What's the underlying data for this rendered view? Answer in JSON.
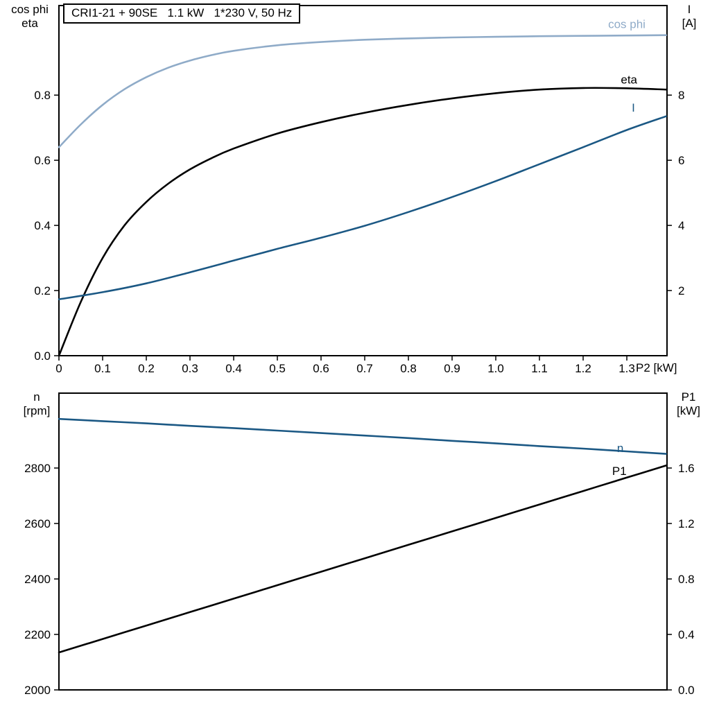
{
  "header": {
    "title": "CRI1-21 + 90SE   1.1 kW   1*230 V, 50 Hz"
  },
  "colors": {
    "black": "#000000",
    "dark_blue": "#1b5884",
    "light_blue": "#8fabc8"
  },
  "chart_data": [
    {
      "type": "line",
      "plot": "top",
      "x_axis": {
        "label": "P2 [kW]",
        "range": [
          0,
          1.392
        ],
        "ticks": [
          0,
          0.1,
          0.2,
          0.3,
          0.4,
          0.5,
          0.6,
          0.7,
          0.8,
          0.9,
          1.0,
          1.1,
          1.2,
          1.3
        ],
        "tick_labels": [
          "0",
          "0.1",
          "0.2",
          "0.3",
          "0.4",
          "0.5",
          "0.6",
          "0.7",
          "0.8",
          "0.9",
          "1.0",
          "1.1",
          "1.2",
          "1.3"
        ],
        "show_labels": true
      },
      "left_axis": {
        "title_lines": [
          "cos phi",
          "eta"
        ],
        "range": [
          0,
          1.075
        ],
        "ticks": [
          0,
          0.2,
          0.4,
          0.6,
          0.8
        ],
        "tick_labels": [
          "0.0",
          "0.2",
          "0.4",
          "0.6",
          "0.8"
        ]
      },
      "right_axis": {
        "title_lines": [
          "I",
          "[A]"
        ],
        "range": [
          0,
          10.75
        ],
        "ticks": [
          2,
          4,
          6,
          8
        ],
        "tick_labels": [
          "2",
          "4",
          "6",
          "8"
        ]
      },
      "grid": false,
      "series": [
        {
          "name": "cos phi",
          "axis": "left",
          "color": "#8fabc8",
          "points": [
            [
              0,
              0.64
            ],
            [
              0.05,
              0.71
            ],
            [
              0.1,
              0.77
            ],
            [
              0.15,
              0.818
            ],
            [
              0.2,
              0.855
            ],
            [
              0.25,
              0.884
            ],
            [
              0.3,
              0.906
            ],
            [
              0.35,
              0.923
            ],
            [
              0.4,
              0.936
            ],
            [
              0.5,
              0.953
            ],
            [
              0.6,
              0.963
            ],
            [
              0.7,
              0.97
            ],
            [
              0.8,
              0.974
            ],
            [
              0.9,
              0.977
            ],
            [
              1.0,
              0.979
            ],
            [
              1.1,
              0.981
            ],
            [
              1.2,
              0.982
            ],
            [
              1.3,
              0.983
            ],
            [
              1.39,
              0.984
            ]
          ],
          "label": {
            "text": "cos phi",
            "x": 1.3,
            "v": 1.018,
            "color": "#8fabc8"
          }
        },
        {
          "name": "eta",
          "axis": "left",
          "color": "#000000",
          "points": [
            [
              0,
              0.0
            ],
            [
              0.05,
              0.165
            ],
            [
              0.1,
              0.3
            ],
            [
              0.15,
              0.4
            ],
            [
              0.2,
              0.472
            ],
            [
              0.25,
              0.528
            ],
            [
              0.3,
              0.572
            ],
            [
              0.35,
              0.607
            ],
            [
              0.4,
              0.636
            ],
            [
              0.5,
              0.682
            ],
            [
              0.6,
              0.717
            ],
            [
              0.7,
              0.746
            ],
            [
              0.8,
              0.77
            ],
            [
              0.9,
              0.79
            ],
            [
              1.0,
              0.806
            ],
            [
              1.1,
              0.817
            ],
            [
              1.2,
              0.822
            ],
            [
              1.3,
              0.821
            ],
            [
              1.39,
              0.817
            ]
          ],
          "label": {
            "text": "eta",
            "x": 1.305,
            "v": 0.848,
            "color": "#000000"
          }
        },
        {
          "name": "I",
          "axis": "right",
          "color": "#1b5884",
          "points": [
            [
              0,
              1.73
            ],
            [
              0.1,
              1.95
            ],
            [
              0.2,
              2.22
            ],
            [
              0.3,
              2.56
            ],
            [
              0.4,
              2.92
            ],
            [
              0.5,
              3.28
            ],
            [
              0.6,
              3.62
            ],
            [
              0.7,
              3.99
            ],
            [
              0.8,
              4.41
            ],
            [
              0.9,
              4.87
            ],
            [
              1.0,
              5.36
            ],
            [
              1.1,
              5.88
            ],
            [
              1.2,
              6.4
            ],
            [
              1.3,
              6.93
            ],
            [
              1.39,
              7.35
            ]
          ],
          "label": {
            "text": "I",
            "x": 1.315,
            "v": 7.62,
            "color": "#1b5884"
          }
        }
      ]
    },
    {
      "type": "line",
      "plot": "bottom",
      "x_axis": {
        "label": "",
        "range": [
          0,
          1.392
        ],
        "ticks": [],
        "tick_labels": [],
        "show_labels": false
      },
      "left_axis": {
        "title_lines": [
          "n",
          "[rpm]"
        ],
        "range": [
          2000,
          3070
        ],
        "ticks": [
          2000,
          2200,
          2400,
          2600,
          2800
        ],
        "tick_labels": [
          "2000",
          "2200",
          "2400",
          "2600",
          "2800"
        ]
      },
      "right_axis": {
        "title_lines": [
          "P1",
          "[kW]"
        ],
        "range": [
          0,
          2.14
        ],
        "ticks": [
          0,
          0.4,
          0.8,
          1.2,
          1.6
        ],
        "tick_labels": [
          "0.0",
          "0.4",
          "0.8",
          "1.2",
          "1.6"
        ]
      },
      "grid": false,
      "series": [
        {
          "name": "n",
          "axis": "left",
          "color": "#1b5884",
          "points": [
            [
              0,
              2977
            ],
            [
              0.1,
              2969
            ],
            [
              0.2,
              2961
            ],
            [
              0.3,
              2952
            ],
            [
              0.4,
              2944
            ],
            [
              0.5,
              2935
            ],
            [
              0.6,
              2926
            ],
            [
              0.7,
              2917
            ],
            [
              0.8,
              2908
            ],
            [
              0.9,
              2898
            ],
            [
              1.0,
              2889
            ],
            [
              1.1,
              2879
            ],
            [
              1.2,
              2870
            ],
            [
              1.3,
              2860
            ],
            [
              1.39,
              2851
            ]
          ],
          "label": {
            "text": "n",
            "x": 1.285,
            "v": 2872,
            "color": "#1b5884"
          }
        },
        {
          "name": "P1",
          "axis": "right",
          "color": "#000000",
          "points": [
            [
              0,
              0.27
            ],
            [
              0.1,
              0.367
            ],
            [
              0.2,
              0.464
            ],
            [
              0.3,
              0.561
            ],
            [
              0.4,
              0.658
            ],
            [
              0.5,
              0.755
            ],
            [
              0.6,
              0.852
            ],
            [
              0.7,
              0.949
            ],
            [
              0.8,
              1.046
            ],
            [
              0.9,
              1.143
            ],
            [
              1.0,
              1.24
            ],
            [
              1.1,
              1.337
            ],
            [
              1.2,
              1.434
            ],
            [
              1.3,
              1.531
            ],
            [
              1.39,
              1.618
            ]
          ],
          "label": {
            "text": "P1",
            "x": 1.283,
            "v": 1.58,
            "color": "#000000"
          }
        }
      ]
    }
  ]
}
